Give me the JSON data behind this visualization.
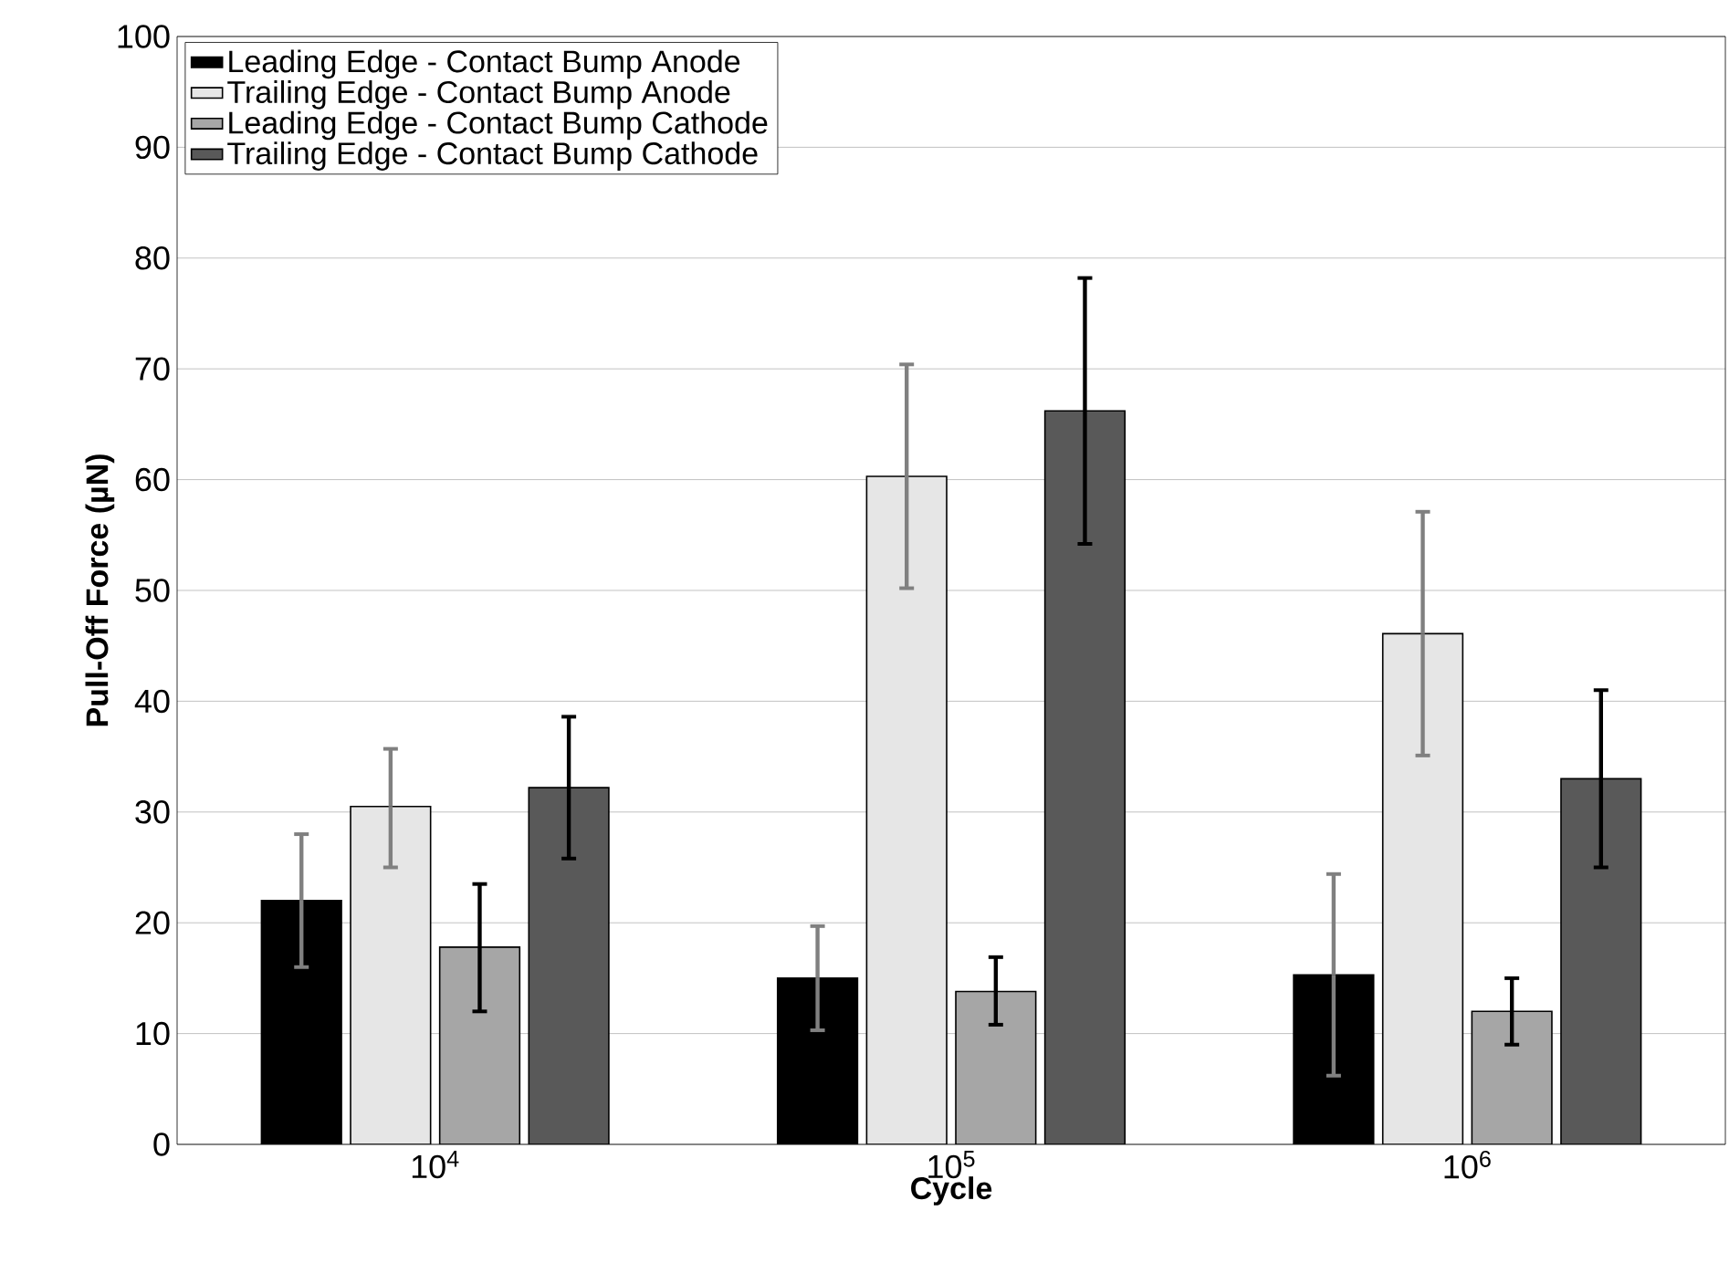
{
  "chart_data": {
    "type": "bar",
    "xlabel": "Cycle",
    "ylabel": "Pull-Off Force (µN)",
    "categories": [
      "10$^{4}$",
      "10$^{5}$",
      "10$^{6}$"
    ],
    "series": [
      {
        "name": "Leading Edge - Contact Bump Anode",
        "color": "#000000",
        "values": [
          22,
          15,
          15.3
        ],
        "errors": [
          [
            16,
            28
          ],
          [
            10.3,
            19.7
          ],
          [
            6.2,
            24.4
          ]
        ]
      },
      {
        "name": "Trailing Edge - Contact Bump Anode",
        "color": "#e6e6e6",
        "values": [
          30.5,
          60.3,
          46.1
        ],
        "errors": [
          [
            25,
            35.7
          ],
          [
            50.2,
            70.4
          ],
          [
            35.1,
            57.1
          ]
        ]
      },
      {
        "name": "Leading Edge - Contact Bump Cathode",
        "color": "#a6a6a6",
        "values": [
          17.8,
          13.8,
          12
        ],
        "errors": [
          [
            12,
            23.5
          ],
          [
            10.8,
            16.9
          ],
          [
            9,
            15
          ]
        ]
      },
      {
        "name": "Trailing Edge - Contact Bump Cathode",
        "color": "#595959",
        "values": [
          32.2,
          66.2,
          33
        ],
        "errors": [
          [
            25.8,
            38.6
          ],
          [
            54.2,
            78.2
          ],
          [
            25,
            41
          ]
        ]
      }
    ],
    "ylim": [
      0,
      100
    ],
    "yticks": [
      0,
      10,
      20,
      30,
      40,
      50,
      60,
      70,
      80,
      90,
      100
    ],
    "grid": "y",
    "legend": "top left"
  }
}
